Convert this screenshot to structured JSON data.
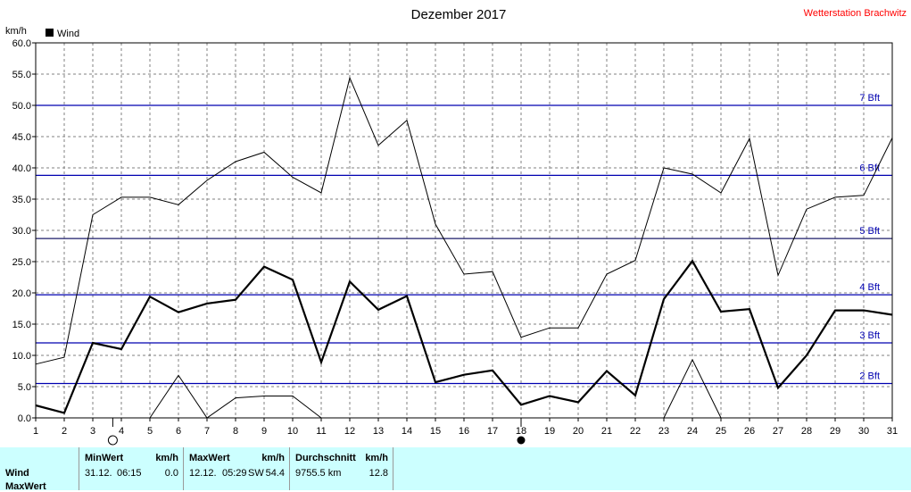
{
  "title": "Dezember 2017",
  "station": "Wetterstation Brachwitz",
  "y_unit": "km/h",
  "legend_label": "Wind",
  "chart_data": {
    "type": "line",
    "title": "Dezember 2017",
    "ylabel": "km/h",
    "ylim": [
      0,
      60
    ],
    "xlim": [
      1,
      31
    ],
    "grid": true,
    "legend_position": "top-left",
    "y_ticks": [
      "0.0",
      "5.0",
      "10.0",
      "15.0",
      "20.0",
      "25.0",
      "30.0",
      "35.0",
      "40.0",
      "45.0",
      "50.0",
      "55.0",
      "60.0"
    ],
    "x_ticks": [
      "1",
      "2",
      "3",
      "4",
      "5",
      "6",
      "7",
      "8",
      "9",
      "10",
      "11",
      "12",
      "13",
      "14",
      "15",
      "16",
      "17",
      "18",
      "19",
      "20",
      "21",
      "22",
      "23",
      "24",
      "25",
      "26",
      "27",
      "28",
      "29",
      "30",
      "31"
    ],
    "x": [
      1,
      2,
      3,
      4,
      5,
      6,
      7,
      8,
      9,
      10,
      11,
      12,
      13,
      14,
      15,
      16,
      17,
      18,
      19,
      20,
      21,
      22,
      23,
      24,
      25,
      26,
      27,
      28,
      29,
      30,
      31
    ],
    "series": [
      {
        "name": "Wind",
        "style": "bold",
        "values": [
          2.0,
          0.8,
          12.0,
          11.0,
          19.4,
          16.9,
          18.3,
          18.9,
          24.2,
          22.1,
          8.9,
          21.8,
          17.3,
          19.5,
          5.7,
          6.9,
          7.6,
          2.1,
          3.5,
          2.5,
          7.5,
          3.6,
          19.0,
          25.1,
          17.0,
          17.4,
          4.8,
          10.0,
          17.2,
          17.2,
          16.5
        ]
      },
      {
        "name": "",
        "style": "thin",
        "values": [
          8.6,
          9.7,
          32.5,
          35.3,
          35.3,
          34.1,
          38.0,
          41.0,
          42.5,
          38.5,
          36.0,
          54.4,
          43.6,
          47.6,
          31.0,
          23.0,
          23.4,
          12.9,
          14.4,
          14.4,
          23.0,
          25.2,
          40.0,
          39.0,
          36.0,
          44.7,
          22.8,
          33.4,
          35.3,
          35.6,
          44.8
        ]
      },
      {
        "name": "",
        "style": "thin",
        "values": [
          null,
          null,
          null,
          null,
          0,
          6.8,
          0,
          3.2,
          3.5,
          3.5,
          0,
          null,
          null,
          null,
          null,
          null,
          null,
          null,
          null,
          null,
          null,
          null,
          0,
          9.3,
          0,
          null,
          null,
          null,
          null,
          null,
          null
        ]
      }
    ],
    "beaufort_lines": [
      {
        "value": 5.5,
        "label": "2 Bft"
      },
      {
        "value": 12.0,
        "label": "3 Bft"
      },
      {
        "value": 19.7,
        "label": "4 Bft"
      },
      {
        "value": 28.7,
        "label": "5 Bft"
      },
      {
        "value": 38.8,
        "label": "6 Bft"
      },
      {
        "value": 50.0,
        "label": "7 Bft"
      }
    ],
    "moon_markers": [
      {
        "day": 3.7,
        "phase": "full"
      },
      {
        "day": 18.0,
        "phase": "new"
      }
    ]
  },
  "summary": {
    "row_labels": [
      "Wind",
      "MaxWert"
    ],
    "min": {
      "header": "MinWert",
      "unit": "km/h",
      "date": "31.12.",
      "time": "06:15",
      "value": "0.0"
    },
    "max": {
      "header": "MaxWert",
      "unit": "km/h",
      "date": "12.12.",
      "time": "05:29",
      "dir": "SW",
      "value": "54.4"
    },
    "avg": {
      "header": "Durchschnitt",
      "unit": "km/h",
      "total": "9755.5 km",
      "value": "12.8"
    }
  }
}
